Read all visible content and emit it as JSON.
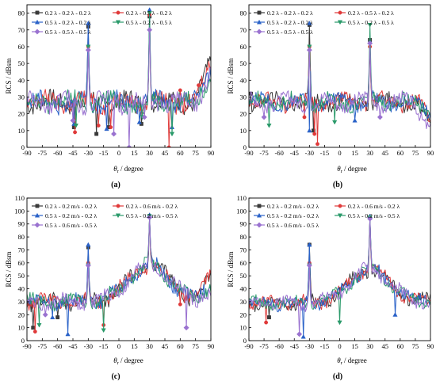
{
  "chart_data": [
    {
      "type": "line",
      "panel_label": "(a)",
      "ylabel": "RCS / dBsm",
      "xlabel_sym": "θ",
      "xlabel_sub": "r",
      "xlabel_rest": " / degree",
      "xlim": [
        -90,
        90
      ],
      "ylim": [
        0,
        85
      ],
      "xticks": [
        -90,
        -75,
        -60,
        -45,
        -30,
        -15,
        0,
        15,
        30,
        45,
        60,
        75,
        90
      ],
      "yticks": [
        0,
        10,
        20,
        30,
        40,
        50,
        60,
        70,
        80
      ],
      "legend": "top",
      "baseline": 27,
      "noise": 5,
      "series": [
        {
          "name": "0.2 λ - 0.2 λ - 0.2 λ",
          "color": "#3a3a3a",
          "marker": "square",
          "peaks": [
            [
              -30,
              72
            ],
            [
              30,
              78
            ],
            [
              -44,
              12
            ],
            [
              -22,
              8
            ],
            [
              -10,
              12
            ],
            [
              22,
              14
            ]
          ],
          "right_end": 50
        },
        {
          "name": "0.2 λ - 0.5 λ - 0.2 λ",
          "color": "#e03a3a",
          "marker": "circle",
          "peaks": [
            [
              -30,
              60
            ],
            [
              30,
              79
            ],
            [
              -43,
              9
            ],
            [
              -20,
              13
            ],
            [
              -8,
              12
            ],
            [
              49,
              0
            ],
            [
              60,
              34
            ],
            [
              78,
              37
            ]
          ],
          "right_end": 51
        },
        {
          "name": "0.5 λ - 0.2 λ - 0.2 λ",
          "color": "#2a62c8",
          "marker": "triangle-up",
          "peaks": [
            [
              -30,
              74
            ],
            [
              30,
              82
            ],
            [
              -44,
              14
            ],
            [
              -12,
              11
            ],
            [
              20,
              15
            ],
            [
              52,
              12
            ]
          ],
          "right_end": 48
        },
        {
          "name": "0.5 λ - 0.2 λ - 0.5 λ",
          "color": "#2a9a6a",
          "marker": "triangle-down",
          "peaks": [
            [
              -30,
              60
            ],
            [
              30,
              80
            ],
            [
              -42,
              13
            ],
            [
              23,
              18
            ],
            [
              52,
              8
            ]
          ],
          "right_end": 46
        },
        {
          "name": "0.5 λ - 0.5 λ - 0.5 λ",
          "color": "#9a72d0",
          "marker": "diamond",
          "peaks": [
            [
              -30,
              58
            ],
            [
              30,
              70
            ],
            [
              -45,
              16
            ],
            [
              -5,
              8
            ],
            [
              10,
              0
            ],
            [
              25,
              18
            ]
          ],
          "right_end": 44
        }
      ]
    },
    {
      "type": "line",
      "panel_label": "(b)",
      "ylabel": "RCS / dBsm",
      "xlabel_sym": "θ",
      "xlabel_sub": "r",
      "xlabel_rest": " / degree",
      "xlim": [
        -90,
        90
      ],
      "ylim": [
        0,
        85
      ],
      "xticks": [
        -90,
        -75,
        -60,
        -45,
        -30,
        -15,
        0,
        15,
        30,
        45,
        60,
        75,
        90
      ],
      "yticks": [
        0,
        10,
        20,
        30,
        40,
        50,
        60,
        70,
        80
      ],
      "legend": "top",
      "baseline": 27,
      "noise": 4,
      "series": [
        {
          "name": "0.2 λ - 0.2 λ - 0.2 λ",
          "color": "#3a3a3a",
          "marker": "square",
          "peaks": [
            [
              -30,
              73
            ],
            [
              30,
              64
            ],
            [
              -26,
              10
            ],
            [
              -88,
              32
            ]
          ],
          "right_end": 12
        },
        {
          "name": "0.2 λ - 0.5 λ - 0.2 λ",
          "color": "#e03a3a",
          "marker": "circle",
          "peaks": [
            [
              -30,
              60
            ],
            [
              30,
              60
            ],
            [
              -25,
              8
            ],
            [
              -22,
              2
            ],
            [
              -35,
              18
            ]
          ],
          "right_end": 18
        },
        {
          "name": "0.5 λ - 0.2 λ - 0.2 λ",
          "color": "#2a62c8",
          "marker": "triangle-up",
          "peaks": [
            [
              -30,
              74
            ],
            [
              30,
              63
            ],
            [
              -30,
              10
            ],
            [
              15,
              16
            ]
          ],
          "right_end": 22
        },
        {
          "name": "0.5 λ - 0.2 λ - 0.5 λ",
          "color": "#2a9a6a",
          "marker": "triangle-down",
          "peaks": [
            [
              -30,
              60
            ],
            [
              30,
              73
            ],
            [
              -70,
              13
            ],
            [
              -5,
              15
            ]
          ],
          "right_end": 25
        },
        {
          "name": "0.5 λ - 0.5 λ - 0.5 λ",
          "color": "#9a72d0",
          "marker": "diamond",
          "peaks": [
            [
              -30,
              58
            ],
            [
              30,
              62
            ],
            [
              -75,
              18
            ],
            [
              40,
              18
            ]
          ],
          "right_end": 10
        }
      ]
    },
    {
      "type": "line",
      "panel_label": "(c)",
      "ylabel": "RCS / dBsm",
      "xlabel_sym": "θ",
      "xlabel_sub": "r",
      "xlabel_rest": " / degree",
      "xlim": [
        -90,
        90
      ],
      "ylim": [
        0,
        110
      ],
      "xticks": [
        -90,
        -75,
        -60,
        -45,
        -30,
        -15,
        0,
        15,
        30,
        45,
        60,
        75,
        90
      ],
      "yticks": [
        0,
        10,
        20,
        30,
        40,
        50,
        60,
        70,
        80,
        90,
        100,
        110
      ],
      "legend": "top",
      "baseline": 30,
      "noise": 5,
      "hump": [
        30,
        28,
        20
      ],
      "series": [
        {
          "name": "0.2 λ - 0.2 m/s - 0.2 λ",
          "color": "#3a3a3a",
          "marker": "square",
          "peaks": [
            [
              -30,
              72
            ],
            [
              30,
              96
            ],
            [
              -84,
              10
            ],
            [
              -60,
              18
            ]
          ],
          "right_end": 50
        },
        {
          "name": "0.2 λ - 0.6 m/s - 0.2 λ",
          "color": "#e03a3a",
          "marker": "circle",
          "peaks": [
            [
              -30,
              60
            ],
            [
              30,
              96
            ],
            [
              -82,
              7
            ],
            [
              -15,
              12
            ],
            [
              60,
              28
            ]
          ],
          "right_end": 52
        },
        {
          "name": "0.5 λ - 0.2 m/s - 0.2 λ",
          "color": "#2a62c8",
          "marker": "triangle-up",
          "peaks": [
            [
              -30,
              74
            ],
            [
              30,
              97
            ],
            [
              -50,
              5
            ],
            [
              -65,
              18
            ]
          ],
          "right_end": 45
        },
        {
          "name": "0.5 λ - 0.2 m/s - 0.5 λ",
          "color": "#2a9a6a",
          "marker": "triangle-down",
          "peaks": [
            [
              -30,
              58
            ],
            [
              30,
              96
            ],
            [
              -15,
              8
            ],
            [
              -78,
              12
            ]
          ],
          "right_end": 42
        },
        {
          "name": "0.5 λ - 0.6 m/s - 0.5 λ",
          "color": "#9a72d0",
          "marker": "diamond",
          "peaks": [
            [
              -30,
              58
            ],
            [
              30,
              95
            ],
            [
              66,
              10
            ],
            [
              -72,
              20
            ]
          ],
          "right_end": 38
        }
      ]
    },
    {
      "type": "line",
      "panel_label": "(d)",
      "ylabel": "RCS / dBsm",
      "xlabel_sym": "θ",
      "xlabel_sub": "r",
      "xlabel_rest": " / degree",
      "xlim": [
        -90,
        90
      ],
      "ylim": [
        0,
        110
      ],
      "xticks": [
        -90,
        -75,
        -60,
        -45,
        -30,
        -15,
        0,
        15,
        30,
        45,
        60,
        75,
        90
      ],
      "yticks": [
        0,
        10,
        20,
        30,
        40,
        50,
        60,
        70,
        80,
        90,
        100,
        110
      ],
      "legend": "top",
      "baseline": 29,
      "noise": 4,
      "hump": [
        30,
        26,
        20
      ],
      "series": [
        {
          "name": "0.2 λ - 0.2 m/s - 0.2 λ",
          "color": "#3a3a3a",
          "marker": "square",
          "peaks": [
            [
              -30,
              74
            ],
            [
              30,
              95
            ],
            [
              -70,
              18
            ]
          ],
          "right_end": 32
        },
        {
          "name": "0.2 λ - 0.6 m/s - 0.2 λ",
          "color": "#e03a3a",
          "marker": "circle",
          "peaks": [
            [
              -30,
              60
            ],
            [
              30,
              95
            ],
            [
              -73,
              14
            ]
          ],
          "right_end": 30
        },
        {
          "name": "0.5 λ - 0.2 m/s - 0.2 λ",
          "color": "#2a62c8",
          "marker": "triangle-up",
          "peaks": [
            [
              -30,
              74
            ],
            [
              30,
              96
            ],
            [
              -36,
              3
            ],
            [
              55,
              20
            ]
          ],
          "right_end": 33
        },
        {
          "name": "0.5 λ - 0.2 m/s - 0.5 λ",
          "color": "#2a9a6a",
          "marker": "triangle-down",
          "peaks": [
            [
              -30,
              58
            ],
            [
              30,
              95
            ],
            [
              0,
              14
            ]
          ],
          "right_end": 31
        },
        {
          "name": "0.5 λ - 0.6 m/s - 0.5 λ",
          "color": "#9a72d0",
          "marker": "diamond",
          "peaks": [
            [
              -30,
              58
            ],
            [
              30,
              94
            ],
            [
              -40,
              5
            ]
          ],
          "right_end": 30
        }
      ]
    }
  ]
}
